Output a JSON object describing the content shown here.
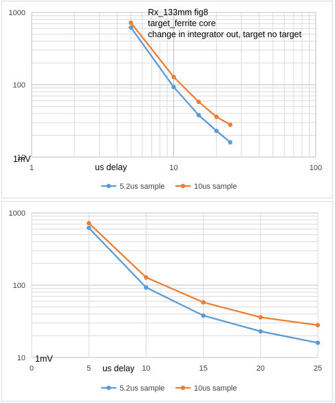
{
  "chart_data": [
    {
      "type": "line",
      "x_scale": "log",
      "y_scale": "log",
      "xlim": [
        1,
        100
      ],
      "ylim": [
        10,
        1000
      ],
      "x_ticks": [
        "1",
        "10",
        "100"
      ],
      "y_ticks": [
        "10",
        "100",
        "1000"
      ],
      "grid": true,
      "legend_position": "bottom",
      "annotations": [
        "Rx_133mm fig8",
        "target_ferrite core",
        "change in integrator out, target no target"
      ],
      "unit_label": "1mV",
      "xlabel": "us delay",
      "series": [
        {
          "name": "5.2us sample",
          "color": "#5b9bd5",
          "x": [
            5,
            10,
            15,
            20,
            25
          ],
          "y": [
            620,
            93,
            38,
            23,
            16
          ]
        },
        {
          "name": "10us sample",
          "color": "#ed7d31",
          "x": [
            5,
            10,
            15,
            20,
            25
          ],
          "y": [
            720,
            128,
            58,
            36,
            28
          ]
        }
      ]
    },
    {
      "type": "line",
      "x_scale": "linear",
      "y_scale": "log",
      "xlim": [
        0,
        25
      ],
      "ylim": [
        10,
        1000
      ],
      "x_ticks": [
        "0",
        "5",
        "10",
        "15",
        "20",
        "25"
      ],
      "y_ticks": [
        "10",
        "100",
        "1000"
      ],
      "grid": true,
      "legend_position": "bottom",
      "unit_label": "1mV",
      "xlabel": "us delay",
      "series": [
        {
          "name": "5.2us sample",
          "color": "#5b9bd5",
          "x": [
            5,
            10,
            15,
            20,
            25
          ],
          "y": [
            620,
            93,
            38,
            23,
            16
          ]
        },
        {
          "name": "10us sample",
          "color": "#ed7d31",
          "x": [
            5,
            10,
            15,
            20,
            25
          ],
          "y": [
            720,
            128,
            58,
            36,
            28
          ]
        }
      ]
    }
  ]
}
